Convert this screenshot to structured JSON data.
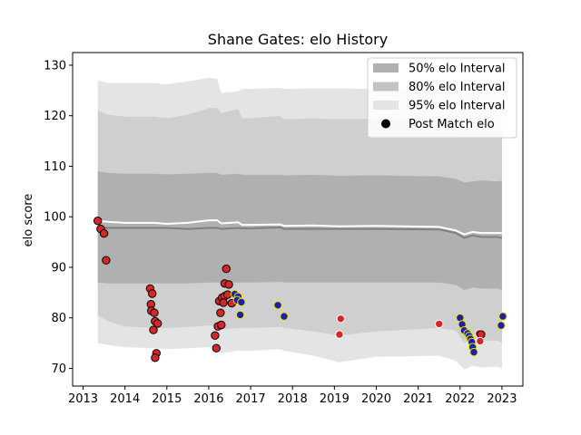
{
  "chart_data": {
    "type": "scatter",
    "title": "Shane Gates: elo History",
    "xlabel": "",
    "ylabel": "elo score",
    "xlim": [
      2012.75,
      2023.5
    ],
    "ylim": [
      66.5,
      132.5
    ],
    "x_ticks": [
      2013,
      2014,
      2015,
      2016,
      2017,
      2018,
      2019,
      2020,
      2021,
      2022,
      2023
    ],
    "x_tick_labels": [
      "2013",
      "2014",
      "2015",
      "2016",
      "2017",
      "2018",
      "2019",
      "2020",
      "2021",
      "2022",
      "2023"
    ],
    "y_ticks": [
      70,
      80,
      90,
      100,
      110,
      120,
      130
    ],
    "y_tick_labels": [
      "70",
      "80",
      "90",
      "100",
      "110",
      "120",
      "130"
    ],
    "grid": false,
    "legend_placement": "top-right",
    "legend": [
      {
        "label": "50% elo Interval",
        "color": "#b0b0b0"
      },
      {
        "label": "80% elo Interval",
        "color": "#c4c4c4"
      },
      {
        "label": "95% elo Interval",
        "color": "#e4e4e4"
      },
      {
        "label": "Post Match elo",
        "color": "#000000"
      }
    ],
    "colors": {
      "band50": "#b0b0b0",
      "band80": "#cfcfcf",
      "band95": "#e4e4e4",
      "mean_line": "#ffffff",
      "median_line": "#808080",
      "loss_fill": "#d62728",
      "loss_edge": "#000000",
      "win_fill": "#1f1fa8",
      "win_edge": "#e8e800",
      "other_fill": "#d62728",
      "other_edge": "#ffffff"
    },
    "bands": {
      "x": [
        2013.35,
        2013.6,
        2014.0,
        2014.7,
        2015.0,
        2015.5,
        2016.0,
        2016.2,
        2016.3,
        2016.7,
        2016.8,
        2017.0,
        2017.7,
        2017.8,
        2018.5,
        2019.1,
        2020.0,
        2021.5,
        2021.9,
        2022.1,
        2022.3,
        2022.5,
        2022.9,
        2023.0
      ],
      "p95_upper": [
        127,
        126.5,
        126.5,
        126.5,
        126.2,
        126.8,
        127.5,
        127.3,
        124.5,
        124.8,
        125.3,
        125.3,
        125.5,
        125.3,
        125.4,
        125.4,
        125.3,
        125.0,
        124.5,
        124.2,
        124.6,
        124.5,
        124.8,
        125.0
      ],
      "p80_upper": [
        121,
        120.2,
        119.8,
        119.8,
        119.5,
        120.2,
        121.5,
        121.5,
        120.5,
        121.3,
        119.5,
        119.5,
        120.0,
        119.3,
        119.5,
        119.3,
        119.4,
        119.0,
        117.5,
        116.5,
        117.0,
        116.8,
        117.0,
        117.0
      ],
      "p50_upper": [
        109,
        108.7,
        108.5,
        108.5,
        108.4,
        108.5,
        108.7,
        108.7,
        108.3,
        108.5,
        108.3,
        108.3,
        108.3,
        108.2,
        108.3,
        108.1,
        108.2,
        108.0,
        107.5,
        106.8,
        107.0,
        107.2,
        107.0,
        107.2
      ],
      "mean": [
        99.2,
        99.0,
        98.8,
        98.8,
        98.6,
        98.8,
        99.3,
        99.3,
        98.7,
        98.9,
        98.4,
        98.4,
        98.5,
        98.2,
        98.3,
        98.1,
        98.2,
        98.0,
        97.3,
        96.5,
        97.0,
        96.8,
        96.8,
        96.8
      ],
      "median": [
        97.8,
        97.8,
        97.8,
        97.8,
        97.8,
        97.6,
        97.8,
        97.8,
        97.6,
        97.8,
        97.7,
        97.7,
        97.9,
        97.6,
        97.6,
        97.6,
        97.6,
        97.5,
        96.8,
        95.8,
        96.3,
        96.0,
        96.0,
        95.8
      ],
      "p50_lower": [
        87,
        86.8,
        86.8,
        86.8,
        86.8,
        86.8,
        87.0,
        87.0,
        87.0,
        87.0,
        87.0,
        87.0,
        87.1,
        87.0,
        87.0,
        87.0,
        87.0,
        87.0,
        86.5,
        85.5,
        86.0,
        85.8,
        85.8,
        85.5
      ],
      "p80_lower": [
        80.5,
        79.3,
        78.3,
        78.0,
        78.0,
        78.2,
        78.5,
        78.3,
        77.7,
        78.0,
        78.0,
        78.0,
        78.2,
        78.0,
        77.3,
        76.5,
        77.3,
        78.0,
        77.5,
        75.0,
        76.0,
        75.5,
        75.5,
        75.0
      ],
      "p95_lower": [
        75,
        74.6,
        74.2,
        74.0,
        73.8,
        74.0,
        74.2,
        74.0,
        73.0,
        73.5,
        73.5,
        73.5,
        73.8,
        73.5,
        72.5,
        71.2,
        72.3,
        72.5,
        71.5,
        69.8,
        70.5,
        70.2,
        70.3,
        70.0
      ]
    },
    "points": [
      {
        "x": 2013.35,
        "y": 99.2,
        "result": "loss"
      },
      {
        "x": 2013.42,
        "y": 97.6,
        "result": "loss"
      },
      {
        "x": 2013.5,
        "y": 96.7,
        "result": "loss"
      },
      {
        "x": 2013.55,
        "y": 91.4,
        "result": "loss"
      },
      {
        "x": 2014.6,
        "y": 85.8,
        "result": "loss"
      },
      {
        "x": 2014.65,
        "y": 84.8,
        "result": "loss"
      },
      {
        "x": 2014.62,
        "y": 82.7,
        "result": "loss"
      },
      {
        "x": 2014.63,
        "y": 81.4,
        "result": "loss"
      },
      {
        "x": 2014.7,
        "y": 81.0,
        "result": "loss"
      },
      {
        "x": 2014.72,
        "y": 79.3,
        "result": "loss"
      },
      {
        "x": 2014.78,
        "y": 78.9,
        "result": "loss"
      },
      {
        "x": 2014.68,
        "y": 77.6,
        "result": "loss"
      },
      {
        "x": 2014.75,
        "y": 73.0,
        "result": "loss"
      },
      {
        "x": 2014.72,
        "y": 72.1,
        "result": "loss"
      },
      {
        "x": 2016.15,
        "y": 76.5,
        "result": "loss"
      },
      {
        "x": 2016.18,
        "y": 74.0,
        "result": "loss"
      },
      {
        "x": 2016.22,
        "y": 78.3,
        "result": "loss"
      },
      {
        "x": 2016.3,
        "y": 78.6,
        "result": "loss"
      },
      {
        "x": 2016.28,
        "y": 81.0,
        "result": "loss"
      },
      {
        "x": 2016.25,
        "y": 83.3,
        "result": "loss"
      },
      {
        "x": 2016.32,
        "y": 84.0,
        "result": "loss"
      },
      {
        "x": 2016.38,
        "y": 84.3,
        "result": "loss"
      },
      {
        "x": 2016.35,
        "y": 83.0,
        "result": "loss"
      },
      {
        "x": 2016.45,
        "y": 84.6,
        "result": "loss"
      },
      {
        "x": 2016.38,
        "y": 86.8,
        "result": "loss"
      },
      {
        "x": 2016.48,
        "y": 86.6,
        "result": "loss"
      },
      {
        "x": 2016.42,
        "y": 89.7,
        "result": "loss"
      },
      {
        "x": 2016.55,
        "y": 82.9,
        "result": "loss"
      },
      {
        "x": 2016.62,
        "y": 84.7,
        "result": "win"
      },
      {
        "x": 2016.7,
        "y": 84.2,
        "result": "win"
      },
      {
        "x": 2016.68,
        "y": 83.5,
        "result": "win"
      },
      {
        "x": 2016.78,
        "y": 83.1,
        "result": "win"
      },
      {
        "x": 2016.75,
        "y": 80.6,
        "result": "win"
      },
      {
        "x": 2017.65,
        "y": 82.5,
        "result": "win"
      },
      {
        "x": 2017.8,
        "y": 80.3,
        "result": "win"
      },
      {
        "x": 2019.15,
        "y": 79.8,
        "result": "other"
      },
      {
        "x": 2019.12,
        "y": 76.7,
        "result": "other"
      },
      {
        "x": 2021.5,
        "y": 78.8,
        "result": "other"
      },
      {
        "x": 2022.0,
        "y": 80.0,
        "result": "win"
      },
      {
        "x": 2022.05,
        "y": 78.7,
        "result": "win"
      },
      {
        "x": 2022.1,
        "y": 77.5,
        "result": "win"
      },
      {
        "x": 2022.18,
        "y": 76.9,
        "result": "win"
      },
      {
        "x": 2022.22,
        "y": 76.4,
        "result": "win"
      },
      {
        "x": 2022.25,
        "y": 75.8,
        "result": "win"
      },
      {
        "x": 2022.28,
        "y": 75.2,
        "result": "win"
      },
      {
        "x": 2022.3,
        "y": 74.2,
        "result": "win"
      },
      {
        "x": 2022.33,
        "y": 73.2,
        "result": "win"
      },
      {
        "x": 2022.45,
        "y": 76.9,
        "result": "other"
      },
      {
        "x": 2022.5,
        "y": 76.7,
        "result": "loss"
      },
      {
        "x": 2022.48,
        "y": 75.4,
        "result": "other"
      },
      {
        "x": 2022.98,
        "y": 78.5,
        "result": "win"
      },
      {
        "x": 2023.02,
        "y": 80.3,
        "result": "win"
      }
    ]
  }
}
